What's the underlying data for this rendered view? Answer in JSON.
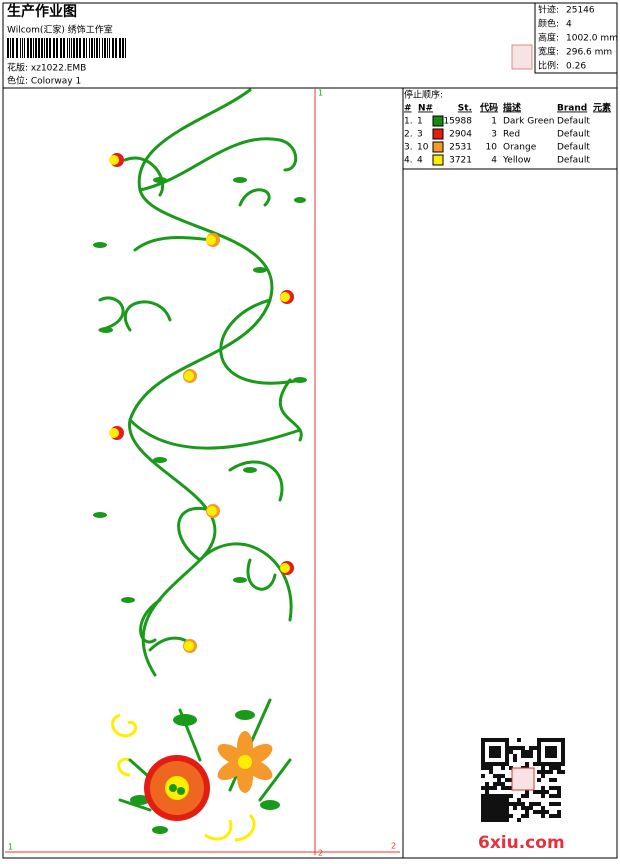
{
  "header": {
    "title": "生产作业图",
    "studio": "Wilcom(汇家) 绣饰工作室",
    "file": "花版: xz1022.EMB",
    "colorway": "色位: Colorway 1"
  },
  "info": [
    {
      "label": "针迹:",
      "value": "25146"
    },
    {
      "label": "颜色:",
      "value": "4"
    },
    {
      "label": "高度:",
      "value": "1002.0 mm"
    },
    {
      "label": "宽度:",
      "value": "296.6 mm"
    },
    {
      "label": "比例:",
      "value": "0.26"
    }
  ],
  "stop_sequence": {
    "title": "停止顺序:",
    "columns": [
      "#",
      "N#",
      "St.",
      "代码",
      "描述",
      "Brand",
      "元素"
    ],
    "rows": [
      {
        "index": "1.",
        "needle": "1",
        "color": "#138a13",
        "stitches": "15988",
        "code": "1",
        "description": "Dark Green",
        "brand": "Default"
      },
      {
        "index": "2.",
        "needle": "3",
        "color": "#e41c12",
        "stitches": "2904",
        "code": "3",
        "description": "Red",
        "brand": "Default"
      },
      {
        "index": "3.",
        "needle": "10",
        "color": "#f59a2a",
        "stitches": "2531",
        "code": "10",
        "description": "Orange",
        "brand": "Default"
      },
      {
        "index": "4.",
        "needle": "4",
        "color": "#ffee00",
        "stitches": "3721",
        "code": "4",
        "description": "Yellow",
        "brand": "Default"
      }
    ]
  },
  "markers": {
    "top": "1",
    "bottom_left": "1",
    "bottom": "2",
    "right": "2"
  },
  "watermark": "6xiu.com"
}
